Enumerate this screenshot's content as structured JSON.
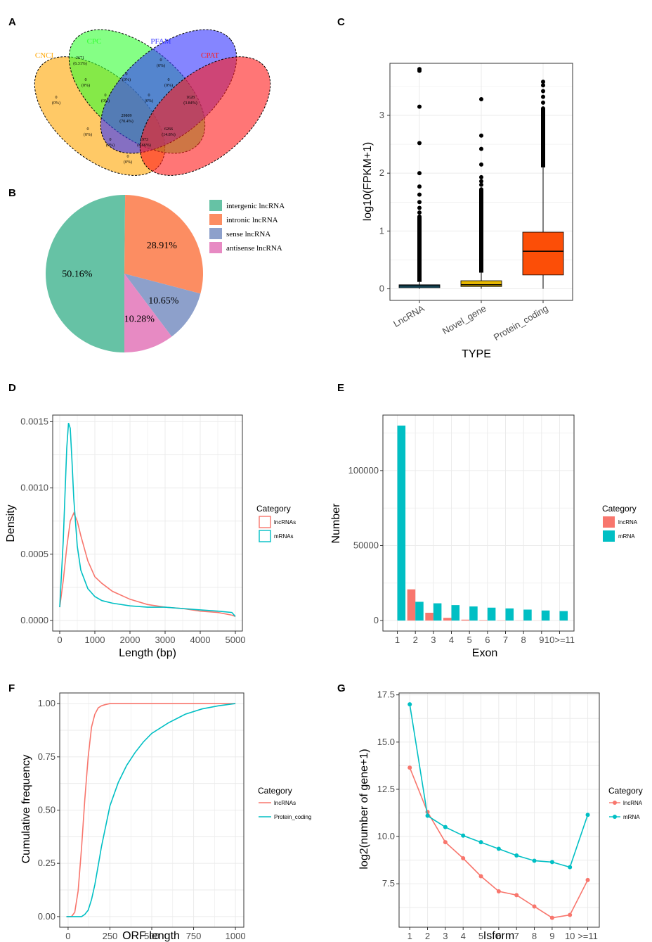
{
  "panels": {
    "A": "A",
    "B": "B",
    "C": "C",
    "D": "D",
    "E": "E",
    "F": "F",
    "G": "G"
  },
  "colors": {
    "lnc": "#F8766D",
    "mrna": "#00BFC4",
    "grid": "#ebebeb"
  },
  "chart_data": [
    {
      "panel": "A",
      "type": "venn",
      "sets": [
        {
          "name": "CNCI",
          "color": "#FFA500"
        },
        {
          "name": "CPC",
          "color": "#33FF33"
        },
        {
          "name": "PFAM",
          "color": "#3333FF"
        },
        {
          "name": "CPAT",
          "color": "#FF1A1A"
        }
      ],
      "regions": [
        {
          "sets": "CNCI",
          "count": "0",
          "pct": "(0%)"
        },
        {
          "sets": "CPC",
          "count": "2671",
          "pct": "(6.31%)"
        },
        {
          "sets": "PFAM",
          "count": "0",
          "pct": "(0%)"
        },
        {
          "sets": "CPAT",
          "count": "1628",
          "pct": "(3.84%)"
        },
        {
          "sets": "CNCI&CPC",
          "count": "0",
          "pct": "(0%)"
        },
        {
          "sets": "CPC&PFAM",
          "count": "0",
          "pct": "(0%)"
        },
        {
          "sets": "PFAM&CPAT",
          "count": "0",
          "pct": "(0%)"
        },
        {
          "sets": "CNCI&CPC&PFAM",
          "count": "0",
          "pct": "(0%)"
        },
        {
          "sets": "CPC&PFAM&CPAT",
          "count": "0",
          "pct": "(0%)"
        },
        {
          "sets": "ALL",
          "count": "29809",
          "pct": "(70.4%)"
        },
        {
          "sets": "CNCI&PFAM",
          "count": "0",
          "pct": "(0%)"
        },
        {
          "sets": "CPC&CPAT",
          "count": "6266",
          "pct": "(14.8%)"
        },
        {
          "sets": "CNCI&PFAM&CPAT",
          "count": "0",
          "pct": "(0%)"
        },
        {
          "sets": "CNCI&CPC&CPAT",
          "count": "1973",
          "pct": "(4.66%)"
        },
        {
          "sets": "CNCI&CPAT",
          "count": "0",
          "pct": "(0%)"
        }
      ]
    },
    {
      "panel": "B",
      "type": "pie",
      "labels": [
        "intergenic lncRNA",
        "intronic lncRNA",
        "sense lncRNA",
        "antisense lncRNA"
      ],
      "values": [
        50.16,
        28.91,
        10.65,
        10.28
      ],
      "value_labels": [
        "50.16%",
        "28.91%",
        "10.65%",
        "10.28%"
      ],
      "colors": [
        "#66C2A5",
        "#FC8D62",
        "#8DA0CB",
        "#E78AC3"
      ]
    },
    {
      "panel": "C",
      "type": "boxplot",
      "categories": [
        "LncRNA",
        "Novel_gene",
        "Protein_coding"
      ],
      "xlabel": "TYPE",
      "ylabel": "log10(FPKM+1)",
      "ylim": [
        -0.2,
        3.9
      ],
      "yticks": [
        0,
        1,
        2,
        3
      ],
      "boxes": [
        {
          "q1": 0.02,
          "median": 0.05,
          "q3": 0.07,
          "whisker_low": 0,
          "whisker_high": 0.12,
          "color": "#1F6F8B",
          "outliers": [
            3.8,
            3.77,
            3.15,
            2.52,
            2.0,
            1.77,
            1.63,
            1.5,
            1.4,
            1.32,
            1.25
          ]
        },
        {
          "q1": 0.04,
          "median": 0.07,
          "q3": 0.14,
          "whisker_low": 0,
          "whisker_high": 0.28,
          "color": "#E7B800",
          "outliers": [
            3.28,
            2.65,
            2.42,
            2.15,
            1.93,
            1.86,
            1.8,
            1.72
          ]
        },
        {
          "q1": 0.24,
          "median": 0.65,
          "q3": 0.98,
          "whisker_low": 0,
          "whisker_high": 2.1,
          "color": "#FC4E07",
          "outliers": [
            3.58,
            3.52,
            3.42,
            3.32,
            3.22,
            3.12
          ]
        }
      ]
    },
    {
      "panel": "D",
      "type": "line",
      "xlabel": "Length (bp)",
      "ylabel": "Density",
      "xlim": [
        -200,
        5200
      ],
      "ylim": [
        -8e-05,
        0.00155
      ],
      "xticks": [
        0,
        1000,
        2000,
        3000,
        4000,
        5000
      ],
      "yticks": [
        0.0,
        0.0005,
        0.001,
        0.0015
      ],
      "ytick_labels": [
        "0.0000",
        "0.0005",
        "0.0010",
        "0.0015"
      ],
      "legend_title": "Category",
      "series": [
        {
          "name": "lncRNAs",
          "color": "#F8766D",
          "x": [
            0,
            100,
            200,
            300,
            400,
            500,
            600,
            800,
            1000,
            1200,
            1500,
            2000,
            2500,
            3000,
            3500,
            4000,
            4500,
            4900,
            5000
          ],
          "y": [
            0.0001,
            0.0003,
            0.00055,
            0.00075,
            0.00081,
            0.00075,
            0.00064,
            0.00045,
            0.00033,
            0.00028,
            0.00022,
            0.00016,
            0.00012,
            0.0001,
            9e-05,
            7e-05,
            6e-05,
            4e-05,
            3e-05
          ]
        },
        {
          "name": "mRNAs",
          "color": "#00BFC4",
          "x": [
            0,
            100,
            200,
            250,
            300,
            350,
            400,
            500,
            600,
            800,
            1000,
            1200,
            1500,
            2000,
            2500,
            3000,
            3500,
            4000,
            4500,
            4900,
            5000
          ],
          "y": [
            0.0001,
            0.0006,
            0.0013,
            0.00149,
            0.00145,
            0.0012,
            0.00092,
            0.00056,
            0.00038,
            0.00024,
            0.00018,
            0.00015,
            0.00013,
            0.00011,
            0.0001,
            0.0001,
            9e-05,
            8e-05,
            7e-05,
            6e-05,
            3e-05
          ]
        }
      ]
    },
    {
      "panel": "E",
      "type": "bar",
      "xlabel": "Exon",
      "ylabel": "Number",
      "categories": [
        "1",
        "2",
        "3",
        "4",
        "5",
        "6",
        "7",
        "8",
        "9",
        "10>=11"
      ],
      "ylim": [
        -7000,
        137000
      ],
      "yticks": [
        0,
        50000,
        100000
      ],
      "legend_title": "Category",
      "series": [
        {
          "name": "lncRNA",
          "color": "#F8766D",
          "values": [
            0,
            20800,
            5200,
            1800,
            600,
            300,
            150,
            80,
            40,
            0
          ]
        },
        {
          "name": "mRNA",
          "color": "#00BFC4",
          "values": [
            130000,
            12500,
            11500,
            10300,
            9400,
            8600,
            8100,
            7300,
            6700,
            6300
          ]
        }
      ]
    },
    {
      "panel": "F",
      "type": "line",
      "xlabel": "ORF length",
      "ylabel": "Cumulative frequency",
      "xlim": [
        -50,
        1050
      ],
      "ylim": [
        -0.05,
        1.05
      ],
      "xticks": [
        0,
        250,
        500,
        750,
        1000
      ],
      "yticks": [
        0,
        0.25,
        0.5,
        0.75,
        1.0
      ],
      "ytick_labels": [
        "0.00",
        "0.25",
        "0.50",
        "0.75",
        "1.00"
      ],
      "legend_title": "Category",
      "series": [
        {
          "name": "lncRNAs",
          "color": "#F8766D",
          "x": [
            -10,
            20,
            40,
            60,
            80,
            100,
            120,
            140,
            160,
            180,
            200,
            220,
            250,
            300,
            400,
            600,
            1000
          ],
          "y": [
            0,
            0,
            0.02,
            0.12,
            0.32,
            0.55,
            0.75,
            0.89,
            0.95,
            0.98,
            0.99,
            0.995,
            1.0,
            1.0,
            1.0,
            1.0,
            1.0
          ]
        },
        {
          "name": "Protein_coding",
          "color": "#00BFC4",
          "x": [
            -10,
            80,
            100,
            120,
            140,
            160,
            180,
            200,
            250,
            300,
            350,
            400,
            450,
            500,
            600,
            700,
            800,
            900,
            1000
          ],
          "y": [
            0,
            0,
            0.01,
            0.03,
            0.08,
            0.15,
            0.24,
            0.33,
            0.52,
            0.63,
            0.71,
            0.77,
            0.82,
            0.86,
            0.91,
            0.95,
            0.975,
            0.99,
            1.0
          ]
        }
      ]
    },
    {
      "panel": "G",
      "type": "line",
      "xlabel": "Isform",
      "ylabel": "log2(number of gene+1)",
      "categories": [
        "1",
        "2",
        "3",
        "4",
        "5",
        "6",
        "7",
        "8",
        "9",
        "10",
        ">=11"
      ],
      "ylim": [
        5.2,
        17.6
      ],
      "yticks": [
        7.5,
        10.0,
        12.5,
        15.0,
        17.5
      ],
      "ytick_labels": [
        "7.5",
        "10.0",
        "12.5",
        "15.0",
        "17.5"
      ],
      "legend_title": "Category",
      "series": [
        {
          "name": "lncRNA",
          "color": "#F8766D",
          "values": [
            13.65,
            11.3,
            9.7,
            8.85,
            7.9,
            7.1,
            6.9,
            6.3,
            5.7,
            5.85,
            7.7
          ]
        },
        {
          "name": "mRNA",
          "color": "#00BFC4",
          "values": [
            17.0,
            11.1,
            10.5,
            10.05,
            9.7,
            9.35,
            9.0,
            8.72,
            8.65,
            8.38,
            11.15
          ]
        }
      ]
    }
  ]
}
